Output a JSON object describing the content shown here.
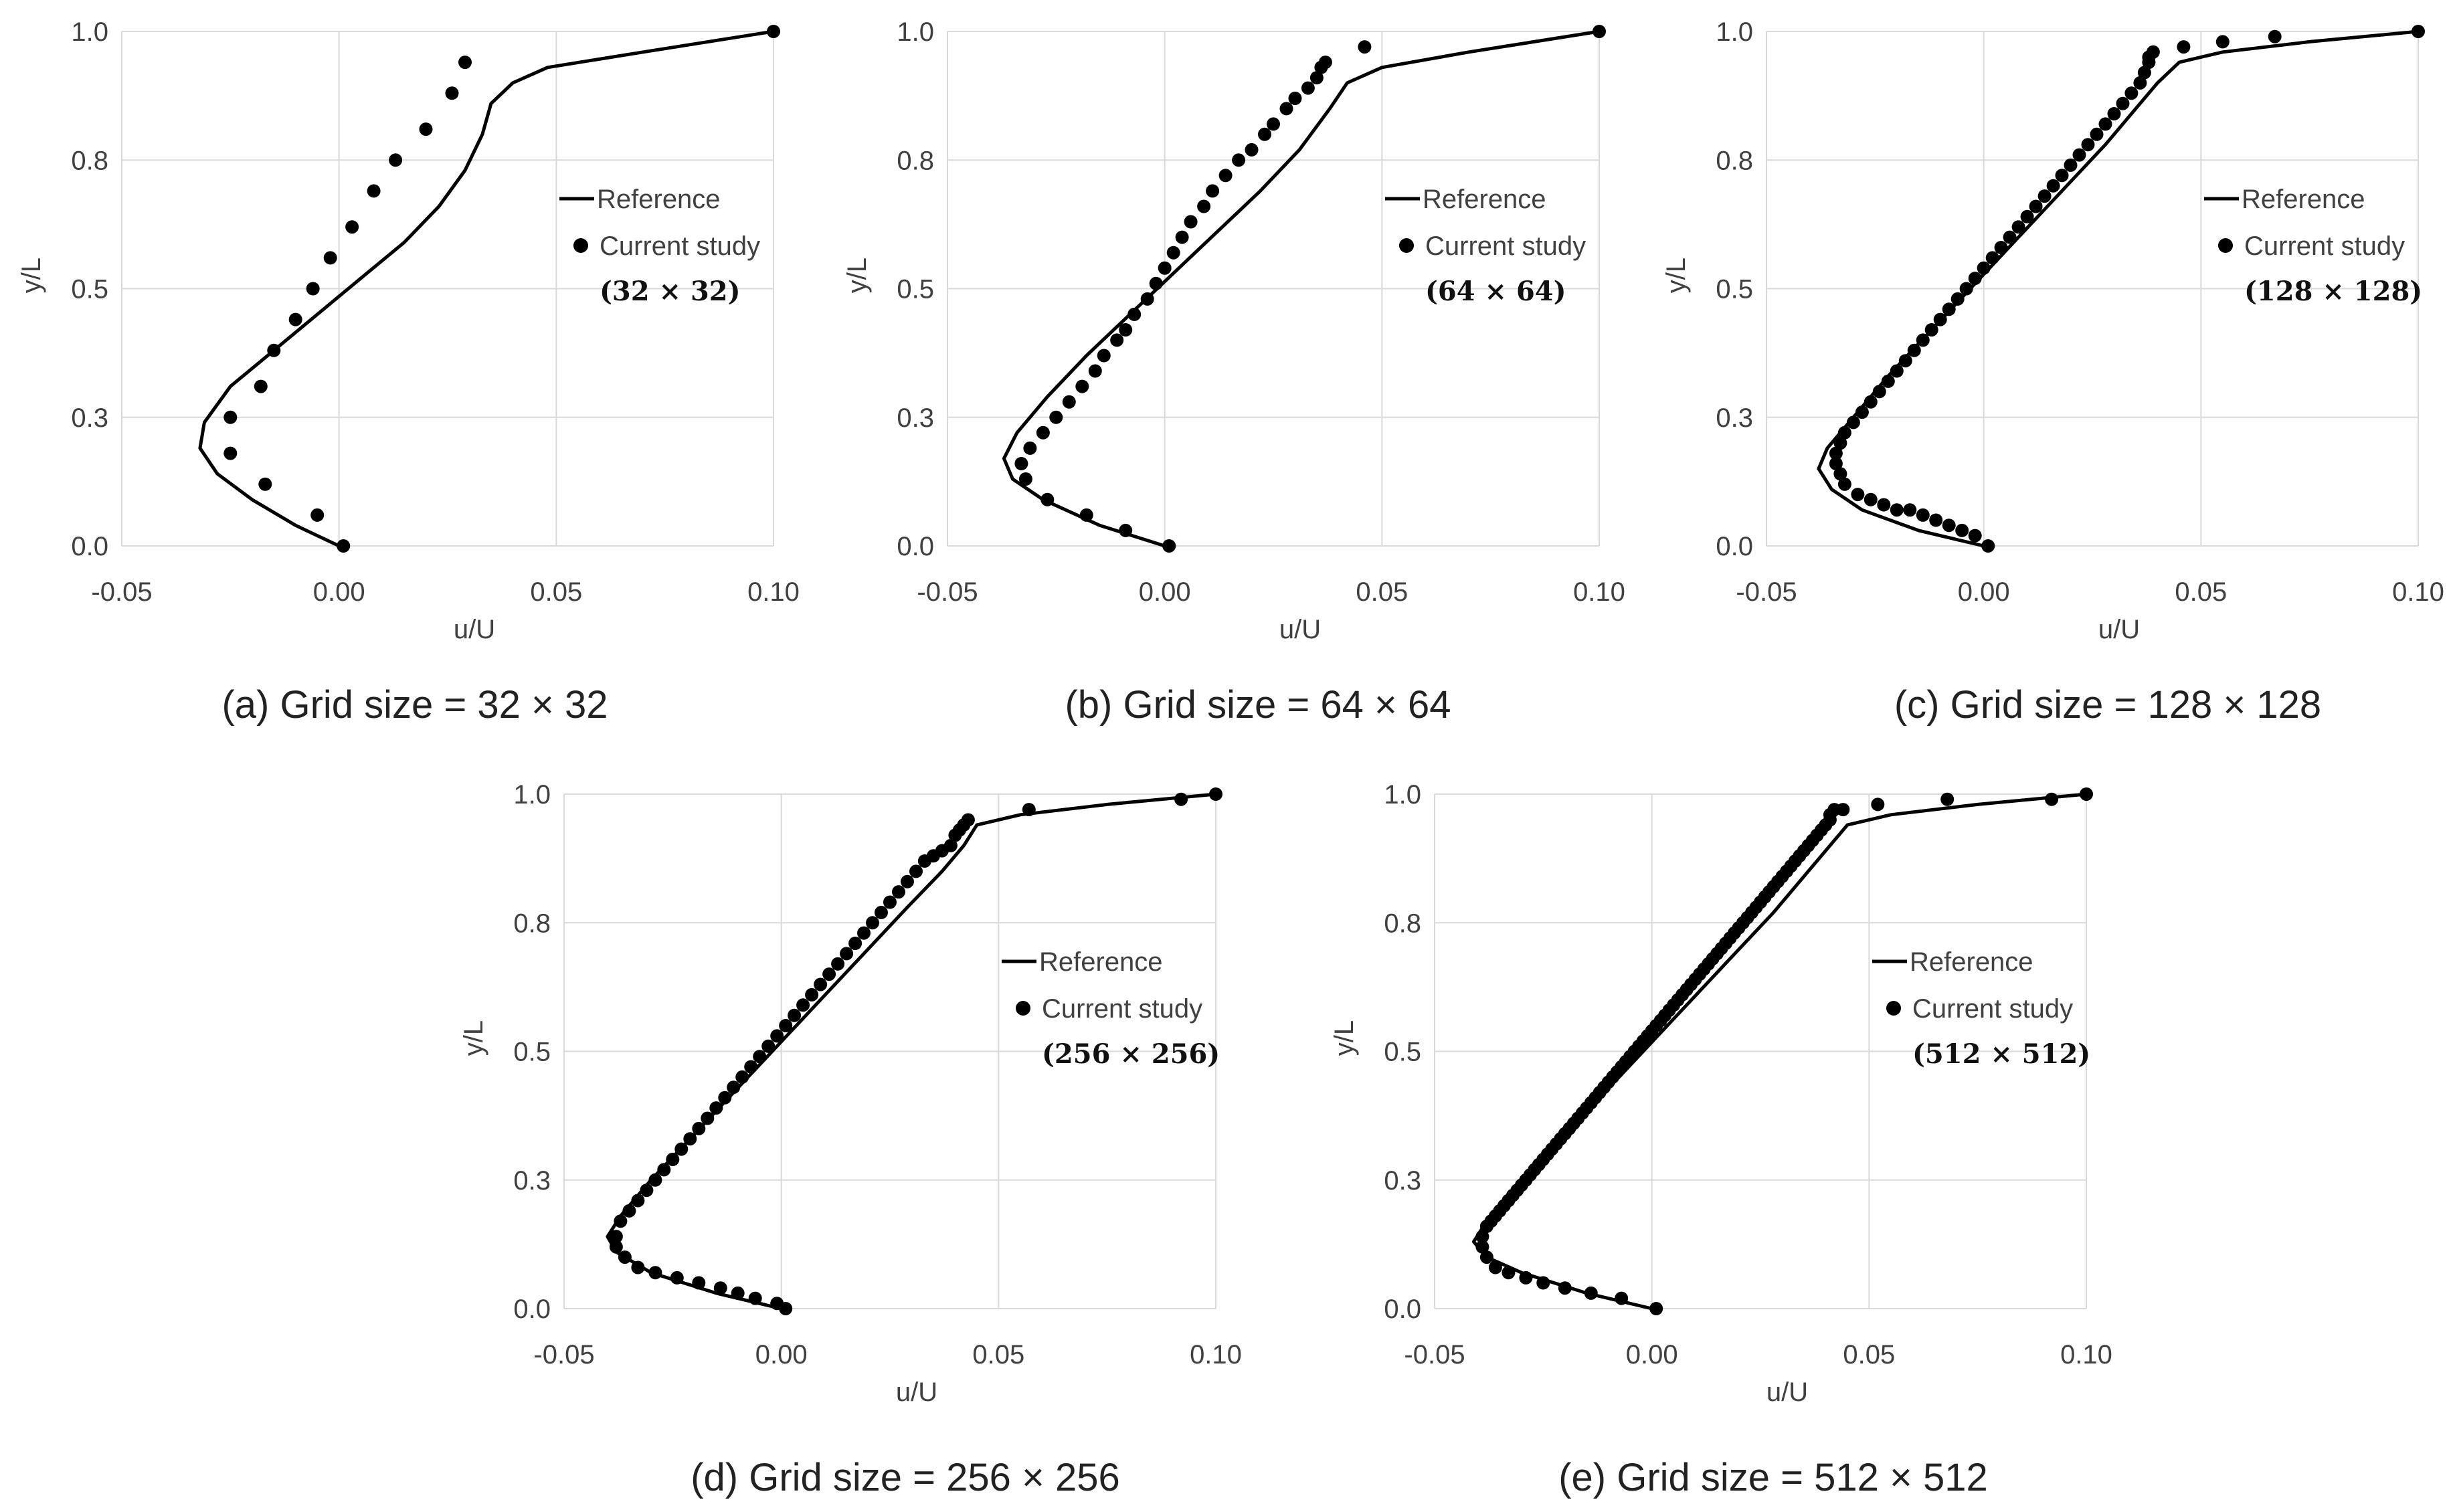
{
  "colors": {
    "line": "#000000",
    "marker": "#000000",
    "grid": "#d9d9d9",
    "tick_text": "#404040"
  },
  "chart_data": [
    {
      "type": "line",
      "caption": "(a) Grid size = 32 × 32",
      "xlabel": "u/U",
      "ylabel": "y/L",
      "xlim": [
        -0.05,
        0.1
      ],
      "ylim": [
        0.0,
        1.0
      ],
      "x_ticks": [
        "-0.05",
        "0.00",
        "0.05",
        "0.10"
      ],
      "y_ticks": [
        "0.0",
        "0.3",
        "0.5",
        "0.8",
        "1.0"
      ],
      "legend": {
        "reference": "Reference",
        "current": "Current study",
        "grid_label": "(32 × 32)"
      },
      "series": [
        {
          "name": "Reference",
          "style": "line",
          "x": [
            0.0,
            -0.01,
            -0.02,
            -0.028,
            -0.032,
            -0.031,
            -0.025,
            -0.015,
            -0.005,
            0.005,
            0.015,
            0.023,
            0.029,
            0.033,
            0.035,
            0.04,
            0.048,
            0.07,
            0.1
          ],
          "y": [
            0.0,
            0.04,
            0.09,
            0.14,
            0.19,
            0.24,
            0.31,
            0.38,
            0.45,
            0.52,
            0.59,
            0.66,
            0.73,
            0.8,
            0.86,
            0.9,
            0.93,
            0.96,
            1.0
          ]
        },
        {
          "name": "Current study",
          "style": "markers",
          "x": [
            0.001,
            -0.005,
            -0.017,
            -0.025,
            -0.025,
            -0.018,
            -0.015,
            -0.01,
            -0.006,
            -0.002,
            0.003,
            0.008,
            0.013,
            0.02,
            0.026,
            0.029,
            0.1
          ],
          "y": [
            0.0,
            0.06,
            0.12,
            0.18,
            0.25,
            0.31,
            0.38,
            0.44,
            0.5,
            0.56,
            0.62,
            0.69,
            0.75,
            0.81,
            0.88,
            0.94,
            1.0
          ]
        }
      ]
    },
    {
      "type": "line",
      "caption": "(b) Grid size = 64 × 64",
      "xlabel": "u/U",
      "ylabel": "y/L",
      "xlim": [
        -0.05,
        0.1
      ],
      "ylim": [
        0.0,
        1.0
      ],
      "x_ticks": [
        "-0.05",
        "0.00",
        "0.05",
        "0.10"
      ],
      "y_ticks": [
        "0.0",
        "0.3",
        "0.5",
        "0.8",
        "1.0"
      ],
      "legend": {
        "reference": "Reference",
        "current": "Current study",
        "grid_label": "(64 × 64)"
      },
      "series": [
        {
          "name": "Reference",
          "style": "line",
          "x": [
            0.0,
            -0.015,
            -0.028,
            -0.035,
            -0.037,
            -0.034,
            -0.027,
            -0.018,
            -0.008,
            0.002,
            0.012,
            0.022,
            0.031,
            0.038,
            0.042,
            0.05,
            0.07,
            0.1
          ],
          "y": [
            0.0,
            0.04,
            0.09,
            0.13,
            0.17,
            0.22,
            0.29,
            0.37,
            0.45,
            0.53,
            0.61,
            0.69,
            0.77,
            0.85,
            0.9,
            0.93,
            0.96,
            1.0
          ]
        },
        {
          "name": "Current study",
          "style": "markers",
          "x": [
            0.001,
            -0.009,
            -0.018,
            -0.027,
            -0.032,
            -0.033,
            -0.031,
            -0.028,
            -0.025,
            -0.022,
            -0.019,
            -0.016,
            -0.014,
            -0.011,
            -0.009,
            -0.007,
            -0.004,
            -0.002,
            0.0,
            0.002,
            0.004,
            0.006,
            0.009,
            0.011,
            0.014,
            0.017,
            0.02,
            0.023,
            0.025,
            0.028,
            0.03,
            0.033,
            0.035,
            0.036,
            0.037,
            0.046,
            0.1
          ],
          "y": [
            0.0,
            0.03,
            0.06,
            0.09,
            0.13,
            0.16,
            0.19,
            0.22,
            0.25,
            0.28,
            0.31,
            0.34,
            0.37,
            0.4,
            0.42,
            0.45,
            0.48,
            0.51,
            0.54,
            0.57,
            0.6,
            0.63,
            0.66,
            0.69,
            0.72,
            0.75,
            0.77,
            0.8,
            0.82,
            0.85,
            0.87,
            0.89,
            0.91,
            0.93,
            0.94,
            0.97,
            1.0
          ]
        }
      ]
    },
    {
      "type": "line",
      "caption": "(c) Grid size = 128 × 128",
      "xlabel": "u/U",
      "ylabel": "y/L",
      "xlim": [
        -0.05,
        0.1
      ],
      "ylim": [
        0.0,
        1.0
      ],
      "x_ticks": [
        "-0.05",
        "0.00",
        "0.05",
        "0.10"
      ],
      "y_ticks": [
        "0.0",
        "0.3",
        "0.5",
        "0.8",
        "1.0"
      ],
      "legend": {
        "reference": "Reference",
        "current": "Current study",
        "grid_label": "(128 × 128)"
      },
      "series": [
        {
          "name": "Reference",
          "style": "line",
          "x": [
            0.0,
            -0.015,
            -0.028,
            -0.035,
            -0.038,
            -0.036,
            -0.03,
            -0.022,
            -0.012,
            -0.002,
            0.008,
            0.018,
            0.028,
            0.035,
            0.04,
            0.045,
            0.055,
            0.075,
            0.1
          ],
          "y": [
            0.0,
            0.03,
            0.07,
            0.11,
            0.15,
            0.19,
            0.25,
            0.33,
            0.42,
            0.51,
            0.6,
            0.69,
            0.78,
            0.85,
            0.9,
            0.94,
            0.96,
            0.98,
            1.0
          ]
        },
        {
          "name": "Current study",
          "style": "markers",
          "x": [
            0.001,
            -0.002,
            -0.005,
            -0.008,
            -0.011,
            -0.014,
            -0.017,
            -0.02,
            -0.023,
            -0.026,
            -0.029,
            -0.032,
            -0.033,
            -0.034,
            -0.034,
            -0.033,
            -0.032,
            -0.03,
            -0.028,
            -0.026,
            -0.024,
            -0.022,
            -0.02,
            -0.018,
            -0.016,
            -0.014,
            -0.012,
            -0.01,
            -0.008,
            -0.006,
            -0.004,
            -0.002,
            0.0,
            0.002,
            0.004,
            0.006,
            0.008,
            0.01,
            0.012,
            0.014,
            0.016,
            0.018,
            0.02,
            0.022,
            0.024,
            0.026,
            0.028,
            0.03,
            0.032,
            0.034,
            0.036,
            0.037,
            0.038,
            0.038,
            0.039,
            0.046,
            0.055,
            0.067,
            0.1
          ],
          "y": [
            0.0,
            0.02,
            0.03,
            0.04,
            0.05,
            0.06,
            0.07,
            0.07,
            0.08,
            0.09,
            0.1,
            0.12,
            0.14,
            0.16,
            0.18,
            0.2,
            0.22,
            0.24,
            0.26,
            0.28,
            0.3,
            0.32,
            0.34,
            0.36,
            0.38,
            0.4,
            0.42,
            0.44,
            0.46,
            0.48,
            0.5,
            0.52,
            0.54,
            0.56,
            0.58,
            0.6,
            0.62,
            0.64,
            0.66,
            0.68,
            0.7,
            0.72,
            0.74,
            0.76,
            0.78,
            0.8,
            0.82,
            0.84,
            0.86,
            0.88,
            0.9,
            0.92,
            0.94,
            0.95,
            0.96,
            0.97,
            0.98,
            0.99,
            1.0
          ]
        }
      ]
    },
    {
      "type": "line",
      "caption": "(d) Grid size = 256 × 256",
      "xlabel": "u/U",
      "ylabel": "y/L",
      "xlim": [
        -0.05,
        0.1
      ],
      "ylim": [
        0.0,
        1.0
      ],
      "x_ticks": [
        "-0.05",
        "0.00",
        "0.05",
        "0.10"
      ],
      "y_ticks": [
        "0.0",
        "0.3",
        "0.5",
        "0.8",
        "1.0"
      ],
      "legend": {
        "reference": "Reference",
        "current": "Current study",
        "grid_label": "(256 × 256)"
      },
      "series": [
        {
          "name": "Reference",
          "style": "line",
          "x": [
            0.0,
            -0.015,
            -0.03,
            -0.038,
            -0.04,
            -0.037,
            -0.03,
            -0.021,
            -0.011,
            -0.001,
            0.009,
            0.019,
            0.029,
            0.037,
            0.042,
            0.045,
            0.055,
            0.075,
            0.1
          ],
          "y": [
            0.0,
            0.03,
            0.07,
            0.11,
            0.14,
            0.18,
            0.25,
            0.33,
            0.42,
            0.51,
            0.6,
            0.69,
            0.78,
            0.85,
            0.9,
            0.94,
            0.96,
            0.98,
            1.0
          ]
        },
        {
          "name": "Current study",
          "style": "markers",
          "x": [
            0.001,
            -0.001,
            -0.006,
            -0.01,
            -0.014,
            -0.019,
            -0.024,
            -0.029,
            -0.033,
            -0.036,
            -0.038,
            -0.038,
            -0.037,
            -0.035,
            -0.033,
            -0.031,
            -0.029,
            -0.027,
            -0.025,
            -0.023,
            -0.021,
            -0.019,
            -0.017,
            -0.015,
            -0.013,
            -0.011,
            -0.009,
            -0.007,
            -0.005,
            -0.003,
            -0.001,
            0.001,
            0.003,
            0.005,
            0.007,
            0.009,
            0.011,
            0.013,
            0.015,
            0.017,
            0.019,
            0.021,
            0.023,
            0.025,
            0.027,
            0.029,
            0.031,
            0.033,
            0.035,
            0.037,
            0.039,
            0.04,
            0.041,
            0.042,
            0.043,
            0.057,
            0.092,
            0.1
          ],
          "y": [
            0.0,
            0.01,
            0.02,
            0.03,
            0.04,
            0.05,
            0.06,
            0.07,
            0.08,
            0.1,
            0.12,
            0.14,
            0.17,
            0.19,
            0.21,
            0.23,
            0.25,
            0.27,
            0.29,
            0.31,
            0.33,
            0.35,
            0.37,
            0.39,
            0.41,
            0.43,
            0.45,
            0.47,
            0.49,
            0.51,
            0.53,
            0.55,
            0.57,
            0.59,
            0.61,
            0.63,
            0.65,
            0.67,
            0.69,
            0.71,
            0.73,
            0.75,
            0.77,
            0.79,
            0.81,
            0.83,
            0.85,
            0.87,
            0.88,
            0.89,
            0.9,
            0.92,
            0.93,
            0.94,
            0.95,
            0.97,
            0.99,
            1.0
          ]
        }
      ]
    },
    {
      "type": "line",
      "caption": "(e) Grid size = 512 × 512",
      "xlabel": "u/U",
      "ylabel": "y/L",
      "xlim": [
        -0.05,
        0.1
      ],
      "ylim": [
        0.0,
        1.0
      ],
      "x_ticks": [
        "-0.05",
        "0.00",
        "0.05",
        "0.10"
      ],
      "y_ticks": [
        "0.0",
        "0.3",
        "0.5",
        "0.8",
        "1.0"
      ],
      "legend": {
        "reference": "Reference",
        "current": "Current study",
        "grid_label": "(512 × 512)"
      },
      "series": [
        {
          "name": "Reference",
          "style": "line",
          "x": [
            0.0,
            -0.015,
            -0.03,
            -0.038,
            -0.041,
            -0.038,
            -0.031,
            -0.022,
            -0.012,
            -0.002,
            0.008,
            0.018,
            0.028,
            0.036,
            0.041,
            0.045,
            0.055,
            0.075,
            0.1
          ],
          "y": [
            0.0,
            0.03,
            0.07,
            0.1,
            0.13,
            0.17,
            0.24,
            0.32,
            0.41,
            0.5,
            0.59,
            0.68,
            0.77,
            0.85,
            0.9,
            0.94,
            0.96,
            0.98,
            1.0
          ]
        },
        {
          "name": "Current study",
          "style": "markers",
          "x": [
            0.001,
            -0.007,
            -0.014,
            -0.02,
            -0.025,
            -0.029,
            -0.033,
            -0.036,
            -0.038,
            -0.039,
            -0.039,
            -0.038,
            -0.037,
            -0.036,
            -0.035,
            -0.034,
            -0.033,
            -0.032,
            -0.031,
            -0.03,
            -0.029,
            -0.028,
            -0.027,
            -0.026,
            -0.025,
            -0.024,
            -0.023,
            -0.022,
            -0.021,
            -0.02,
            -0.019,
            -0.018,
            -0.017,
            -0.016,
            -0.015,
            -0.014,
            -0.013,
            -0.012,
            -0.011,
            -0.01,
            -0.009,
            -0.008,
            -0.007,
            -0.006,
            -0.005,
            -0.004,
            -0.003,
            -0.002,
            -0.001,
            0.0,
            0.001,
            0.002,
            0.003,
            0.004,
            0.005,
            0.006,
            0.007,
            0.008,
            0.009,
            0.01,
            0.011,
            0.012,
            0.013,
            0.014,
            0.015,
            0.016,
            0.017,
            0.018,
            0.019,
            0.02,
            0.021,
            0.022,
            0.023,
            0.024,
            0.025,
            0.026,
            0.027,
            0.028,
            0.029,
            0.03,
            0.031,
            0.032,
            0.033,
            0.034,
            0.035,
            0.036,
            0.037,
            0.038,
            0.039,
            0.04,
            0.041,
            0.041,
            0.042,
            0.044,
            0.052,
            0.068,
            0.092,
            0.1
          ],
          "y": [
            0.0,
            0.02,
            0.03,
            0.04,
            0.05,
            0.06,
            0.07,
            0.08,
            0.1,
            0.12,
            0.14,
            0.16,
            0.17,
            0.18,
            0.19,
            0.2,
            0.21,
            0.22,
            0.23,
            0.24,
            0.25,
            0.26,
            0.27,
            0.28,
            0.29,
            0.3,
            0.31,
            0.32,
            0.33,
            0.34,
            0.35,
            0.36,
            0.37,
            0.38,
            0.39,
            0.4,
            0.41,
            0.42,
            0.43,
            0.44,
            0.45,
            0.46,
            0.47,
            0.48,
            0.49,
            0.5,
            0.51,
            0.52,
            0.53,
            0.54,
            0.55,
            0.56,
            0.57,
            0.58,
            0.59,
            0.6,
            0.61,
            0.62,
            0.63,
            0.64,
            0.65,
            0.66,
            0.67,
            0.68,
            0.69,
            0.7,
            0.71,
            0.72,
            0.73,
            0.74,
            0.75,
            0.76,
            0.77,
            0.78,
            0.79,
            0.8,
            0.81,
            0.82,
            0.83,
            0.84,
            0.85,
            0.86,
            0.87,
            0.88,
            0.89,
            0.9,
            0.91,
            0.92,
            0.93,
            0.94,
            0.95,
            0.96,
            0.97,
            0.97,
            0.98,
            0.99,
            0.99,
            1.0
          ]
        }
      ]
    }
  ]
}
